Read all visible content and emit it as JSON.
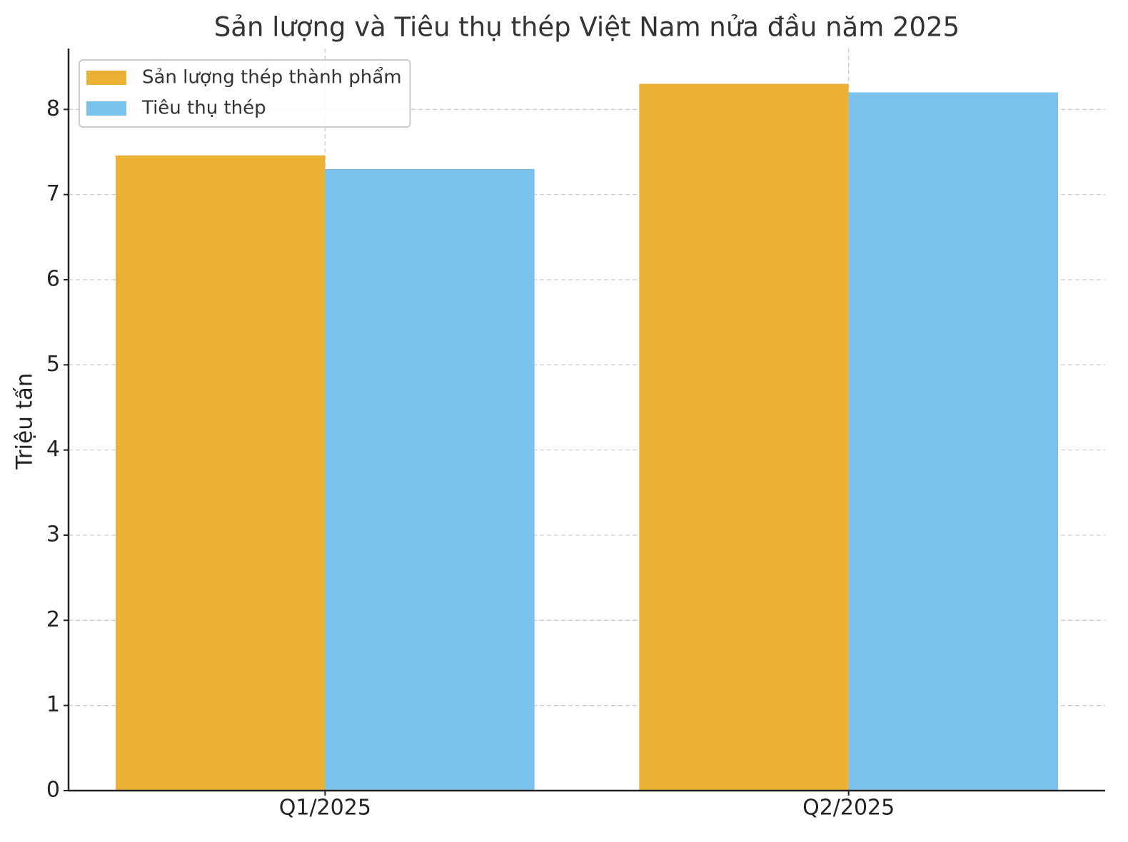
{
  "chart_data": {
    "type": "bar",
    "title": "Sản lượng và Tiêu thụ thép Việt Nam nửa đầu năm 2025",
    "y_label": "Triệu tấn",
    "categories": [
      "Q1/2025",
      "Q2/2025"
    ],
    "series": [
      {
        "name": "Sản lượng thép thành phẩm",
        "color": "#ebb134",
        "values": [
          7.46,
          8.3
        ]
      },
      {
        "name": "Tiêu thụ thép",
        "color": "#7ac2eb",
        "values": [
          7.3,
          8.2
        ]
      }
    ],
    "ylim": [
      0,
      8.715
    ],
    "yticks": [
      0,
      1,
      2,
      3,
      4,
      5,
      6,
      7,
      8
    ],
    "grid": true,
    "legend": "upper-left"
  }
}
